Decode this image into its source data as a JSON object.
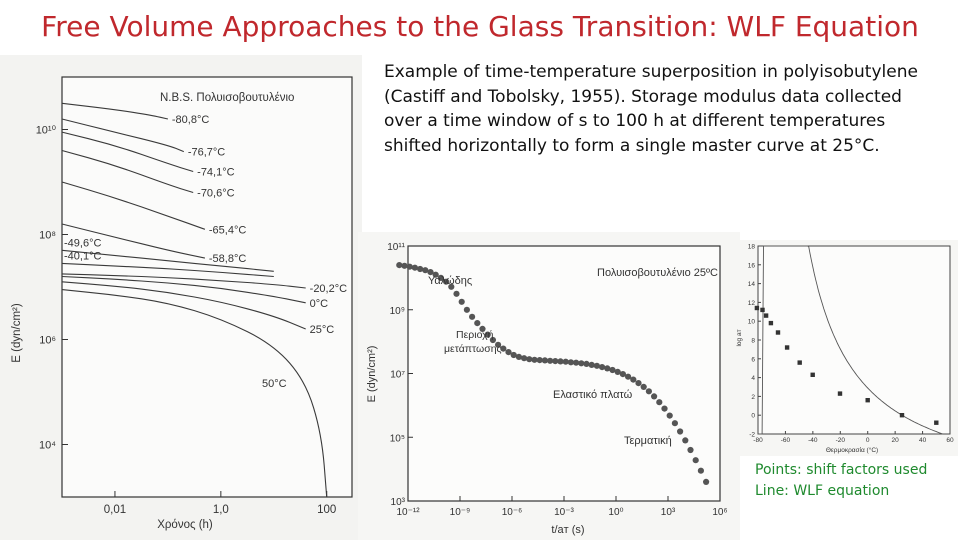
{
  "slide": {
    "title": "Free Volume Approaches to the Glass Transition: WLF Equation",
    "description": "Example of time-temperature superposition in polyisobutylene (Castiff and Tobolsky, 1955).  Storage modulus data collected over a time window of s to 100 h at different temperatures shifted horizontally to form a single master curve at 25°C.",
    "note_points": "Points:  shift factors used",
    "note_line": "Line: WLF equation"
  },
  "chart_data": [
    {
      "type": "line",
      "title": "N.B.S. Πολυισοβουτυλένιο",
      "xlabel": "Χρόνος (h)",
      "ylabel": "E (dyn/cm²)",
      "xscale": "log",
      "yscale": "log",
      "xlim": [
        0.001,
        300
      ],
      "ylim_exp": [
        3,
        11
      ],
      "x_ticks": [
        "0,01",
        "1,0",
        "100"
      ],
      "y_ticks": [
        "10¹⁰",
        "10⁸",
        "10⁶",
        "10⁴"
      ],
      "series": [
        {
          "name": "-80,8°C",
          "x": [
            0.001,
            0.01,
            0.05,
            0.1
          ],
          "y_exp": [
            10.5,
            10.38,
            10.27,
            10.2
          ]
        },
        {
          "name": "-76,7°C",
          "x": [
            0.001,
            0.01,
            0.1,
            0.2
          ],
          "y_exp": [
            10.2,
            9.95,
            9.7,
            9.58
          ]
        },
        {
          "name": "-74,1°C",
          "x": [
            0.001,
            0.01,
            0.1,
            0.3
          ],
          "y_exp": [
            9.95,
            9.7,
            9.35,
            9.2
          ]
        },
        {
          "name": "-70,6°C",
          "x": [
            0.001,
            0.01,
            0.1,
            0.3
          ],
          "y_exp": [
            9.6,
            9.32,
            8.95,
            8.8
          ]
        },
        {
          "name": "-65,4°C",
          "x": [
            0.001,
            0.01,
            0.1,
            0.5
          ],
          "y_exp": [
            9.0,
            8.7,
            8.35,
            8.1
          ]
        },
        {
          "name": "-58,8°C",
          "x": [
            0.001,
            0.01,
            0.1,
            0.5
          ],
          "y_exp": [
            8.2,
            7.95,
            7.7,
            7.55
          ]
        },
        {
          "name": "-49,6°C",
          "x": [
            0.001,
            0.01,
            0.1,
            1,
            10
          ],
          "y_exp": [
            7.7,
            7.6,
            7.5,
            7.4,
            7.3
          ]
        },
        {
          "name": "-40,1°C",
          "x": [
            0.001,
            0.01,
            0.1,
            1,
            10
          ],
          "y_exp": [
            7.45,
            7.4,
            7.35,
            7.28,
            7.2
          ]
        },
        {
          "name": "-20,2°C",
          "x": [
            0.001,
            0.01,
            0.1,
            1,
            10,
            40
          ],
          "y_exp": [
            7.25,
            7.22,
            7.18,
            7.12,
            7.05,
            6.98
          ]
        },
        {
          "name": "0°C",
          "x": [
            0.001,
            0.01,
            0.1,
            1,
            10,
            40
          ],
          "y_exp": [
            7.2,
            7.15,
            7.08,
            6.98,
            6.82,
            6.7
          ]
        },
        {
          "name": "25°C",
          "x": [
            0.001,
            0.01,
            0.1,
            1,
            10,
            40
          ],
          "y_exp": [
            7.1,
            7.02,
            6.9,
            6.72,
            6.45,
            6.2
          ]
        },
        {
          "name": "50°C",
          "x": [
            0.001,
            0.01,
            0.1,
            1,
            10,
            40,
            80,
            100
          ],
          "y_exp": [
            6.95,
            6.85,
            6.7,
            6.4,
            5.9,
            5.2,
            4.2,
            3.0
          ]
        }
      ]
    },
    {
      "type": "scatter",
      "title": "Πολυισοβουτυλένιο 25ºC",
      "xlabel": "t/aᴛ (s)",
      "ylabel": "E (dyn/cm²)",
      "xscale": "log",
      "yscale": "log",
      "xlim_exp": [
        -12,
        6
      ],
      "ylim_exp": [
        3,
        11
      ],
      "x_ticks": [
        "10⁻¹²",
        "10⁻⁹",
        "10⁻⁶",
        "10⁻³",
        "10⁰",
        "10³",
        "10⁶"
      ],
      "y_ticks": [
        "10¹¹",
        "10⁹",
        "10⁷",
        "10⁵",
        "10³"
      ],
      "annotations": [
        "Υαλώδης",
        "Περιοχή",
        "μετάπτωσης",
        "Ελαστικό πλατώ",
        "Τερματική"
      ],
      "points_logx": [
        -12.5,
        -12.2,
        -11.9,
        -11.6,
        -11.3,
        -11.0,
        -10.7,
        -10.4,
        -10.1,
        -9.8,
        -9.5,
        -9.2,
        -8.9,
        -8.6,
        -8.3,
        -8.0,
        -7.7,
        -7.4,
        -7.1,
        -6.8,
        -6.5,
        -6.2,
        -5.9,
        -5.6,
        -5.3,
        -5.0,
        -4.7,
        -4.4,
        -4.1,
        -3.8,
        -3.5,
        -3.2,
        -2.9,
        -2.6,
        -2.3,
        -2.0,
        -1.7,
        -1.4,
        -1.1,
        -0.8,
        -0.5,
        -0.2,
        0.1,
        0.4,
        0.7,
        1.0,
        1.3,
        1.6,
        1.9,
        2.2,
        2.5,
        2.8,
        3.1,
        3.4,
        3.7,
        4.0,
        4.3,
        4.6,
        4.9,
        5.2
      ],
      "points_logy": [
        10.4,
        10.38,
        10.35,
        10.32,
        10.28,
        10.24,
        10.18,
        10.1,
        10.0,
        9.88,
        9.72,
        9.5,
        9.25,
        9.0,
        8.78,
        8.58,
        8.4,
        8.22,
        8.05,
        7.9,
        7.78,
        7.67,
        7.58,
        7.52,
        7.48,
        7.45,
        7.43,
        7.42,
        7.41,
        7.4,
        7.39,
        7.38,
        7.37,
        7.35,
        7.34,
        7.32,
        7.3,
        7.27,
        7.24,
        7.2,
        7.16,
        7.11,
        7.05,
        6.98,
        6.9,
        6.81,
        6.7,
        6.58,
        6.44,
        6.28,
        6.1,
        5.9,
        5.68,
        5.44,
        5.18,
        4.9,
        4.6,
        4.28,
        3.95,
        3.6
      ]
    },
    {
      "type": "scatter",
      "xlabel": "Θερμοκρασία (°C)",
      "ylabel": "log aᴛ",
      "xlim": [
        -80,
        60
      ],
      "ylim": [
        -2,
        18
      ],
      "x_ticks": [
        "-80",
        "-60",
        "-40",
        "-20",
        "0",
        "20",
        "40",
        "60"
      ],
      "y_ticks": [
        "18",
        "16",
        "14",
        "12",
        "10",
        "8",
        "6",
        "4",
        "2",
        "0",
        "-2"
      ],
      "points": [
        {
          "x": -80.8,
          "y": 11.4
        },
        {
          "x": -76.7,
          "y": 11.2
        },
        {
          "x": -74.1,
          "y": 10.6
        },
        {
          "x": -70.6,
          "y": 9.8
        },
        {
          "x": -65.4,
          "y": 8.8
        },
        {
          "x": -58.8,
          "y": 7.2
        },
        {
          "x": -49.6,
          "y": 5.6
        },
        {
          "x": -40.1,
          "y": 4.3
        },
        {
          "x": -20.2,
          "y": 2.3
        },
        {
          "x": 0,
          "y": 1.6
        },
        {
          "x": 25,
          "y": 0.0
        },
        {
          "x": 50,
          "y": -0.8
        }
      ],
      "wlf": {
        "c1": 8.86,
        "c2": 101.6,
        "tref": 25
      }
    }
  ]
}
